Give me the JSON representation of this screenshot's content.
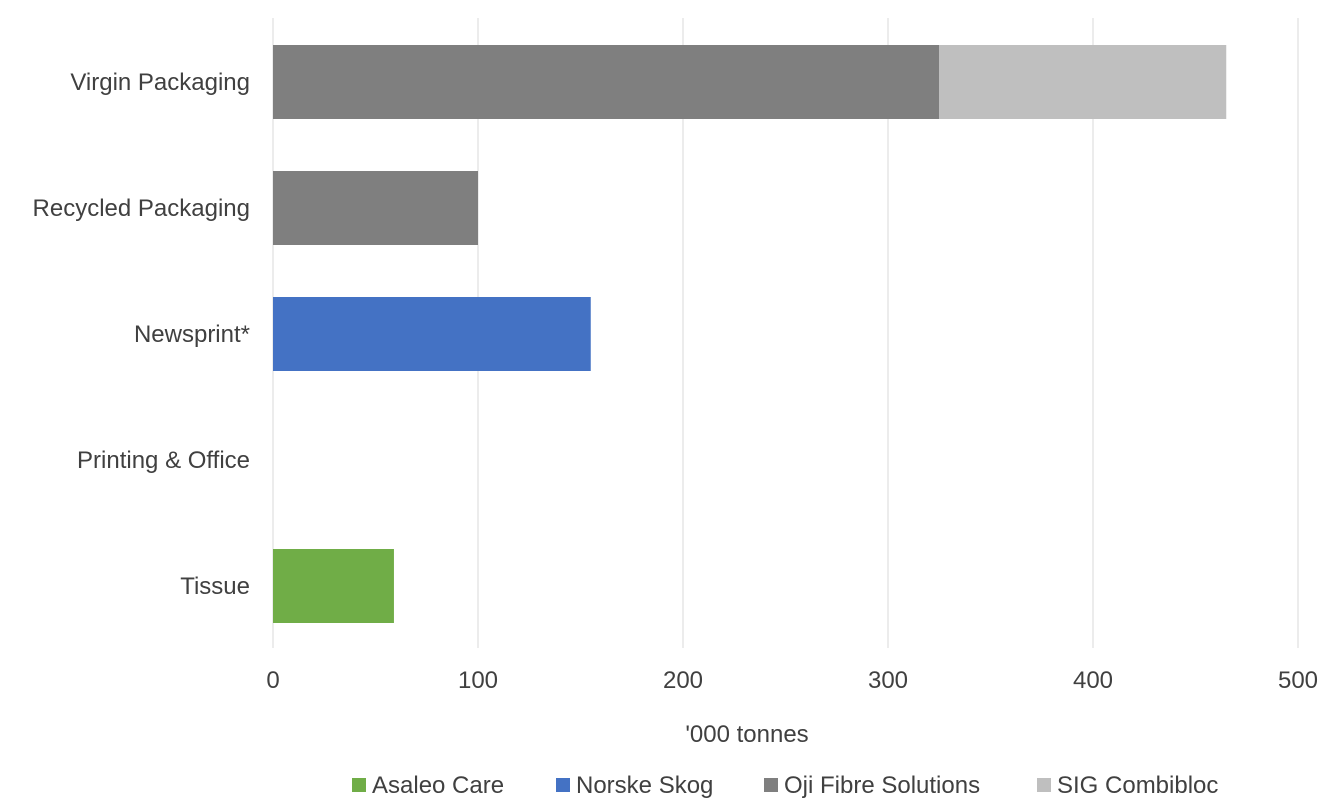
{
  "chart_data": {
    "type": "bar",
    "orientation": "horizontal",
    "stacked": true,
    "categories": [
      "Virgin Packaging",
      "Recycled Packaging",
      "Newsprint*",
      "Printing & Office",
      "Tissue"
    ],
    "series": [
      {
        "name": "Asaleo Care",
        "color": "#70ad47",
        "values": [
          0,
          0,
          0,
          0,
          59
        ]
      },
      {
        "name": "Norske Skog",
        "color": "#4472c4",
        "values": [
          0,
          0,
          155,
          0,
          0
        ]
      },
      {
        "name": "Oji Fibre Solutions",
        "color": "#7f7f7f",
        "values": [
          325,
          100,
          0,
          0,
          0
        ]
      },
      {
        "name": "SIG Combibloc",
        "color": "#bfbfbf",
        "values": [
          140,
          0,
          0,
          0,
          0
        ]
      }
    ],
    "xlabel": "'000 tonnes",
    "xlim": [
      0,
      500
    ],
    "xticks": [
      0,
      100,
      200,
      300,
      400,
      500
    ],
    "grid": true,
    "legend_position": "bottom"
  }
}
